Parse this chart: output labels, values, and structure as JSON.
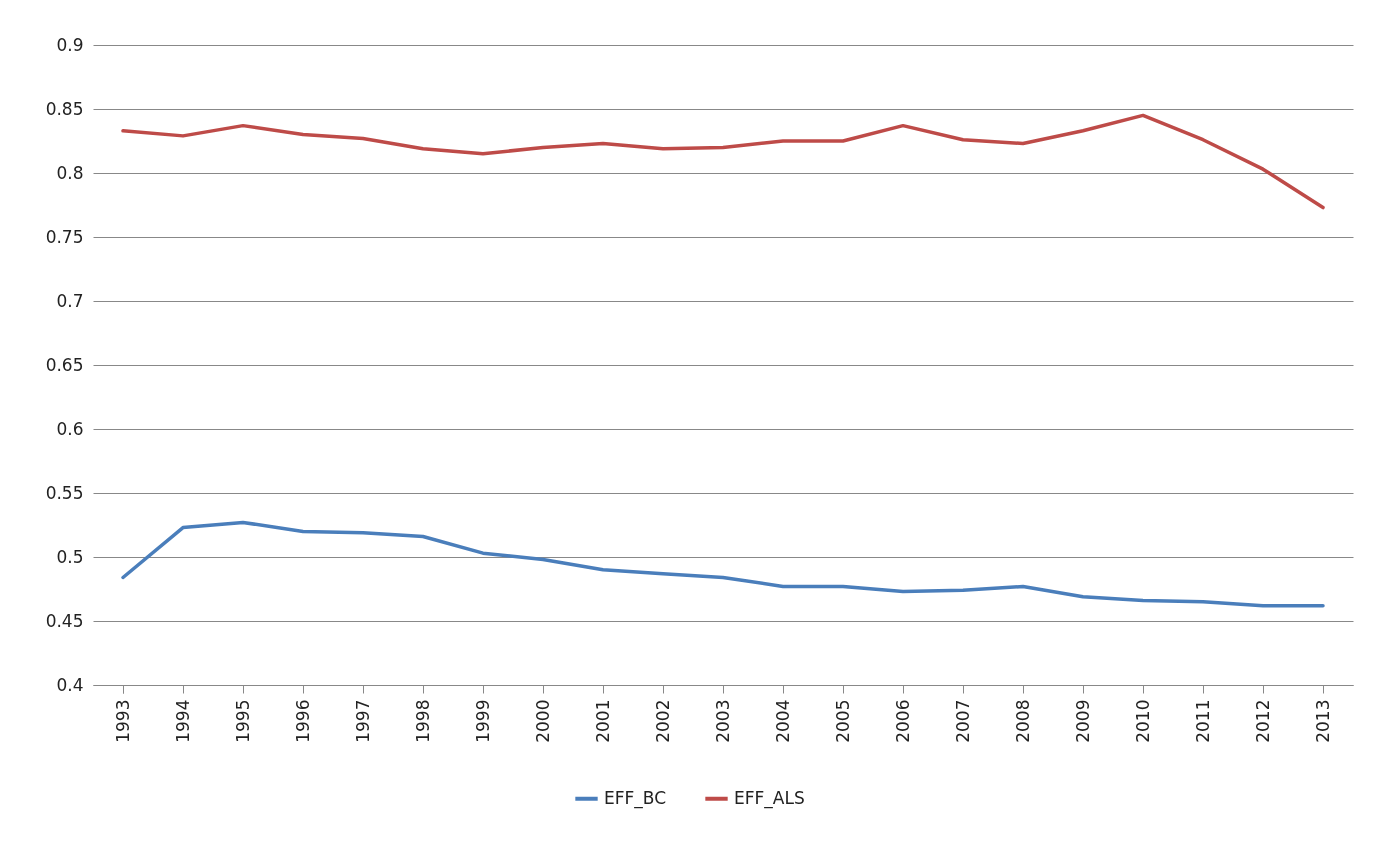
{
  "chart_data": {
    "type": "line",
    "categories": [
      "1993",
      "1994",
      "1995",
      "1996",
      "1997",
      "1998",
      "1999",
      "2000",
      "2001",
      "2002",
      "2003",
      "2004",
      "2005",
      "2006",
      "2007",
      "2008",
      "2009",
      "2010",
      "2011",
      "2012",
      "2013"
    ],
    "series": [
      {
        "name": "EFF_BC",
        "color": "#4a7ebb",
        "values": [
          0.484,
          0.523,
          0.527,
          0.52,
          0.519,
          0.516,
          0.503,
          0.498,
          0.49,
          0.487,
          0.484,
          0.477,
          0.477,
          0.473,
          0.474,
          0.477,
          0.469,
          0.466,
          0.465,
          0.462,
          0.462
        ]
      },
      {
        "name": "EFF_ALS",
        "color": "#be4b48",
        "values": [
          0.833,
          0.829,
          0.837,
          0.83,
          0.827,
          0.819,
          0.815,
          0.82,
          0.823,
          0.819,
          0.82,
          0.825,
          0.825,
          0.837,
          0.826,
          0.823,
          0.833,
          0.845,
          0.826,
          0.803,
          0.773
        ]
      }
    ],
    "ylim": [
      0.4,
      0.9
    ],
    "yticks": [
      0.4,
      0.45,
      0.5,
      0.55,
      0.6,
      0.65,
      0.7,
      0.75,
      0.8,
      0.85,
      0.9
    ],
    "grid": "y",
    "legend": "bottom",
    "marker": "none",
    "line_style": "solid"
  }
}
